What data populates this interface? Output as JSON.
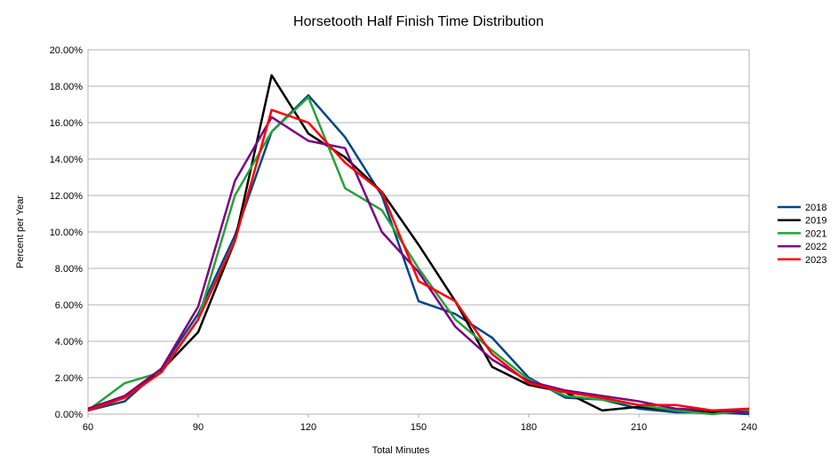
{
  "chart_data": {
    "type": "line",
    "title": "Horsetooth Half Finish Time Distribution",
    "xlabel": "Total Minutes",
    "ylabel": "Percent per Year",
    "xlim": [
      60,
      240
    ],
    "ylim": [
      0,
      0.2
    ],
    "xticks": [
      60,
      90,
      120,
      150,
      180,
      210,
      240
    ],
    "yticks": [
      0,
      0.02,
      0.04,
      0.06,
      0.08,
      0.1,
      0.12,
      0.14,
      0.16,
      0.18,
      0.2
    ],
    "ytick_labels": [
      "0.00%",
      "2.00%",
      "4.00%",
      "6.00%",
      "8.00%",
      "10.00%",
      "12.00%",
      "14.00%",
      "16.00%",
      "18.00%",
      "20.00%"
    ],
    "grid": "horizontal",
    "legend": "right",
    "x": [
      60,
      70,
      80,
      90,
      100,
      110,
      120,
      130,
      140,
      150,
      160,
      170,
      180,
      190,
      200,
      210,
      220,
      230,
      240
    ],
    "series": [
      {
        "name": "2018",
        "color": "#004586",
        "values": [
          0.002,
          0.007,
          0.025,
          0.055,
          0.098,
          0.155,
          0.175,
          0.152,
          0.12,
          0.062,
          0.055,
          0.042,
          0.02,
          0.009,
          0.008,
          0.003,
          0.001,
          0.001,
          0.0
        ]
      },
      {
        "name": "2019",
        "color": "#000000",
        "values": [
          0.002,
          0.01,
          0.024,
          0.045,
          0.095,
          0.186,
          0.154,
          0.141,
          0.122,
          0.093,
          0.062,
          0.026,
          0.016,
          0.012,
          0.002,
          0.004,
          0.002,
          0.001,
          0.002
        ]
      },
      {
        "name": "2021",
        "color": "#26a13a",
        "values": [
          0.002,
          0.017,
          0.023,
          0.052,
          0.12,
          0.155,
          0.174,
          0.124,
          0.112,
          0.08,
          0.052,
          0.035,
          0.019,
          0.01,
          0.008,
          0.005,
          0.002,
          0.0,
          0.002
        ]
      },
      {
        "name": "2022",
        "color": "#7e0082",
        "values": [
          0.003,
          0.01,
          0.025,
          0.059,
          0.128,
          0.163,
          0.15,
          0.146,
          0.1,
          0.078,
          0.048,
          0.03,
          0.018,
          0.013,
          0.01,
          0.007,
          0.003,
          0.002,
          0.001
        ]
      },
      {
        "name": "2023",
        "color": "#ff0000",
        "values": [
          0.002,
          0.009,
          0.023,
          0.052,
          0.095,
          0.167,
          0.16,
          0.138,
          0.122,
          0.073,
          0.062,
          0.033,
          0.017,
          0.012,
          0.009,
          0.005,
          0.005,
          0.002,
          0.003
        ]
      }
    ]
  }
}
